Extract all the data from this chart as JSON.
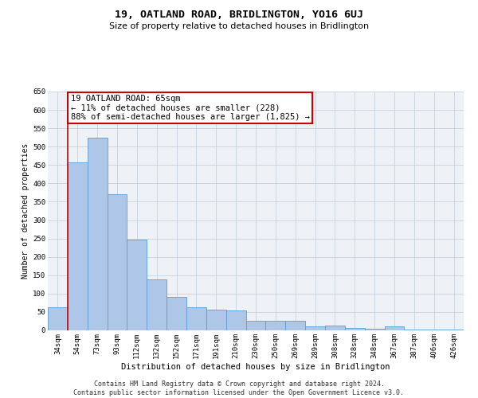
{
  "title": "19, OATLAND ROAD, BRIDLINGTON, YO16 6UJ",
  "subtitle": "Size of property relative to detached houses in Bridlington",
  "xlabel": "Distribution of detached houses by size in Bridlington",
  "ylabel": "Number of detached properties",
  "categories": [
    "34sqm",
    "54sqm",
    "73sqm",
    "93sqm",
    "112sqm",
    "132sqm",
    "152sqm",
    "171sqm",
    "191sqm",
    "210sqm",
    "230sqm",
    "250sqm",
    "269sqm",
    "289sqm",
    "308sqm",
    "328sqm",
    "348sqm",
    "367sqm",
    "387sqm",
    "406sqm",
    "426sqm"
  ],
  "values": [
    62,
    457,
    524,
    370,
    247,
    138,
    92,
    62,
    57,
    55,
    27,
    27,
    27,
    10,
    12,
    7,
    5,
    10,
    3,
    3,
    3
  ],
  "bar_color": "#aec6e8",
  "bar_edge_color": "#5a9fd4",
  "bar_edge_width": 0.6,
  "red_line_index": 1,
  "annotation_text": "19 OATLAND ROAD: 65sqm\n← 11% of detached houses are smaller (228)\n88% of semi-detached houses are larger (1,825) →",
  "annotation_box_color": "#ffffff",
  "annotation_box_edge_color": "#cc0000",
  "red_line_color": "#cc0000",
  "ylim": [
    0,
    650
  ],
  "yticks": [
    0,
    50,
    100,
    150,
    200,
    250,
    300,
    350,
    400,
    450,
    500,
    550,
    600,
    650
  ],
  "background_color": "#eef2f7",
  "footer_text": "Contains HM Land Registry data © Crown copyright and database right 2024.\nContains public sector information licensed under the Open Government Licence v3.0.",
  "title_fontsize": 9.5,
  "subtitle_fontsize": 8,
  "xlabel_fontsize": 7.5,
  "ylabel_fontsize": 7,
  "tick_fontsize": 6.5,
  "footer_fontsize": 6,
  "annotation_fontsize": 7.5
}
